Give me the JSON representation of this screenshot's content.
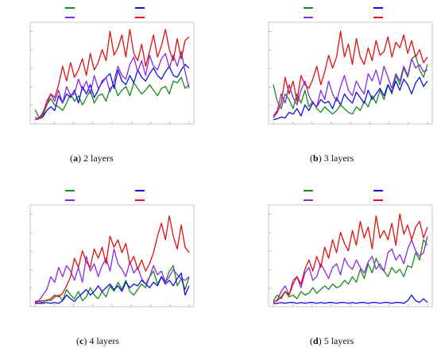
{
  "colors": {
    "green": "#1a8a1a",
    "blue": "#1010e0",
    "purple": "#8a2be2",
    "red": "#e01010",
    "frame": "#c8c8c8",
    "tick": "#999999"
  },
  "chart_data": [
    {
      "type": "line",
      "caption_letter": "a",
      "caption_text": " 2 layers",
      "legend": [
        "green",
        "blue",
        "purple",
        "red"
      ],
      "ylim": [
        0,
        1
      ],
      "series": [
        {
          "color": "green",
          "values": [
            0.13,
            0.05,
            0.06,
            0.18,
            0.25,
            0.18,
            0.16,
            0.12,
            0.2,
            0.3,
            0.22,
            0.28,
            0.18,
            0.26,
            0.34,
            0.2,
            0.28,
            0.3,
            0.22,
            0.36,
            0.4,
            0.28,
            0.34,
            0.38,
            0.28,
            0.42,
            0.36,
            0.3,
            0.34,
            0.4,
            0.34,
            0.28,
            0.36,
            0.38,
            0.3,
            0.44,
            0.42,
            0.48,
            0.36,
            0.4
          ]
        },
        {
          "color": "blue",
          "values": [
            0.02,
            0.03,
            0.05,
            0.12,
            0.16,
            0.12,
            0.28,
            0.2,
            0.3,
            0.26,
            0.34,
            0.2,
            0.38,
            0.3,
            0.4,
            0.26,
            0.34,
            0.44,
            0.48,
            0.52,
            0.36,
            0.56,
            0.44,
            0.4,
            0.5,
            0.42,
            0.56,
            0.48,
            0.44,
            0.52,
            0.58,
            0.5,
            0.46,
            0.54,
            0.6,
            0.5,
            0.48,
            0.56,
            0.62,
            0.58
          ]
        },
        {
          "color": "purple",
          "values": [
            0.05,
            0.03,
            0.1,
            0.18,
            0.3,
            0.22,
            0.34,
            0.2,
            0.38,
            0.28,
            0.3,
            0.46,
            0.34,
            0.44,
            0.3,
            0.5,
            0.36,
            0.42,
            0.48,
            0.32,
            0.44,
            0.6,
            0.5,
            0.46,
            0.62,
            0.7,
            0.54,
            0.66,
            0.5,
            0.72,
            0.6,
            0.56,
            0.68,
            0.74,
            0.58,
            0.72,
            0.6,
            0.76,
            0.54,
            0.36
          ]
        },
        {
          "color": "red",
          "values": [
            0.02,
            0.04,
            0.08,
            0.22,
            0.3,
            0.26,
            0.4,
            0.6,
            0.44,
            0.64,
            0.48,
            0.56,
            0.68,
            0.5,
            0.74,
            0.56,
            0.64,
            0.78,
            0.66,
            0.98,
            0.72,
            0.8,
            0.94,
            0.7,
            1.0,
            0.74,
            0.66,
            0.84,
            0.6,
            0.76,
            0.94,
            0.7,
            0.82,
            1.0,
            0.78,
            0.66,
            0.9,
            0.68,
            0.88,
            0.92
          ]
        }
      ]
    },
    {
      "type": "line",
      "caption_letter": "b",
      "caption_text": " 3 layers",
      "legend": [
        "green",
        "blue",
        "purple",
        "red"
      ],
      "ylim": [
        0,
        1
      ],
      "series": [
        {
          "color": "green",
          "values": [
            0.4,
            0.22,
            0.14,
            0.3,
            0.24,
            0.14,
            0.3,
            0.2,
            0.34,
            0.16,
            0.22,
            0.14,
            0.1,
            0.16,
            0.12,
            0.08,
            0.12,
            0.18,
            0.14,
            0.1,
            0.08,
            0.16,
            0.12,
            0.22,
            0.16,
            0.28,
            0.2,
            0.34,
            0.24,
            0.4,
            0.3,
            0.5,
            0.4,
            0.58,
            0.48,
            0.68,
            0.72,
            0.56,
            0.48,
            0.62
          ]
        },
        {
          "color": "blue",
          "values": [
            0.02,
            0.03,
            0.05,
            0.04,
            0.1,
            0.08,
            0.14,
            0.06,
            0.18,
            0.12,
            0.2,
            0.16,
            0.24,
            0.2,
            0.22,
            0.14,
            0.26,
            0.18,
            0.3,
            0.24,
            0.2,
            0.32,
            0.26,
            0.2,
            0.34,
            0.24,
            0.3,
            0.36,
            0.28,
            0.4,
            0.32,
            0.44,
            0.34,
            0.46,
            0.4,
            0.3,
            0.42,
            0.48,
            0.38,
            0.44
          ]
        },
        {
          "color": "purple",
          "values": [
            0.06,
            0.12,
            0.3,
            0.2,
            0.4,
            0.26,
            0.18,
            0.34,
            0.44,
            0.28,
            0.2,
            0.16,
            0.34,
            0.24,
            0.44,
            0.3,
            0.22,
            0.38,
            0.5,
            0.34,
            0.28,
            0.44,
            0.36,
            0.3,
            0.52,
            0.44,
            0.56,
            0.4,
            0.6,
            0.48,
            0.36,
            0.52,
            0.44,
            0.6,
            0.5,
            0.68,
            0.58,
            0.62,
            0.54,
            0.56
          ]
        },
        {
          "color": "red",
          "values": [
            0.04,
            0.1,
            0.2,
            0.48,
            0.3,
            0.44,
            0.22,
            0.5,
            0.4,
            0.36,
            0.46,
            0.6,
            0.4,
            0.54,
            0.72,
            0.58,
            0.7,
            0.98,
            0.7,
            0.84,
            0.62,
            0.9,
            0.7,
            0.62,
            0.8,
            0.66,
            0.88,
            0.72,
            0.76,
            0.92,
            0.7,
            0.86,
            0.8,
            0.94,
            0.74,
            0.88,
            0.7,
            0.78,
            0.64,
            0.7
          ]
        }
      ]
    },
    {
      "type": "line",
      "caption_letter": "c",
      "caption_text": " 4 layers",
      "legend": [
        "green",
        "blue",
        "purple",
        "red"
      ],
      "ylim": [
        0,
        1
      ],
      "series": [
        {
          "color": "green",
          "values": [
            0.02,
            0.03,
            0.02,
            0.05,
            0.04,
            0.08,
            0.1,
            0.04,
            0.16,
            0.1,
            0.06,
            0.14,
            0.04,
            0.08,
            0.18,
            0.1,
            0.06,
            0.14,
            0.08,
            0.2,
            0.14,
            0.24,
            0.16,
            0.26,
            0.14,
            0.1,
            0.16,
            0.22,
            0.18,
            0.3,
            0.36,
            0.22,
            0.3,
            0.24,
            0.36,
            0.42,
            0.2,
            0.28,
            0.16,
            0.3
          ]
        },
        {
          "color": "blue",
          "values": [
            0.01,
            0.01,
            0.01,
            0.02,
            0.01,
            0.02,
            0.01,
            0.04,
            0.1,
            0.06,
            0.03,
            0.08,
            0.12,
            0.16,
            0.1,
            0.14,
            0.2,
            0.14,
            0.18,
            0.22,
            0.16,
            0.2,
            0.14,
            0.24,
            0.18,
            0.22,
            0.2,
            0.26,
            0.22,
            0.18,
            0.24,
            0.2,
            0.3,
            0.22,
            0.26,
            0.2,
            0.28,
            0.34,
            0.1,
            0.2
          ]
        },
        {
          "color": "purple",
          "values": [
            0.03,
            0.04,
            0.1,
            0.16,
            0.3,
            0.24,
            0.4,
            0.3,
            0.42,
            0.36,
            0.26,
            0.4,
            0.24,
            0.52,
            0.36,
            0.44,
            0.3,
            0.42,
            0.5,
            0.36,
            0.6,
            0.44,
            0.38,
            0.3,
            0.46,
            0.34,
            0.4,
            0.28,
            0.22,
            0.3,
            0.42,
            0.32,
            0.36,
            0.24,
            0.3,
            0.38,
            0.32,
            0.28,
            0.26,
            0.3
          ]
        },
        {
          "color": "red",
          "values": [
            0.02,
            0.03,
            0.04,
            0.04,
            0.06,
            0.1,
            0.08,
            0.12,
            0.2,
            0.3,
            0.5,
            0.4,
            0.58,
            0.46,
            0.4,
            0.6,
            0.5,
            0.62,
            0.44,
            0.74,
            0.62,
            0.7,
            0.56,
            0.66,
            0.44,
            0.52,
            0.38,
            0.48,
            0.36,
            0.44,
            0.56,
            0.74,
            0.88,
            0.7,
            0.96,
            0.74,
            0.6,
            0.86,
            0.62,
            0.56
          ]
        }
      ]
    },
    {
      "type": "line",
      "caption_letter": "d",
      "caption_text": " 5 layers",
      "legend": [
        "green",
        "blue",
        "purple",
        "red"
      ],
      "ylim": [
        0,
        1
      ],
      "series": [
        {
          "color": "green",
          "values": [
            0.04,
            0.1,
            0.06,
            0.14,
            0.08,
            0.1,
            0.06,
            0.14,
            0.1,
            0.12,
            0.18,
            0.12,
            0.16,
            0.2,
            0.16,
            0.22,
            0.18,
            0.2,
            0.26,
            0.22,
            0.3,
            0.24,
            0.38,
            0.28,
            0.44,
            0.34,
            0.5,
            0.4,
            0.36,
            0.3,
            0.4,
            0.34,
            0.38,
            0.3,
            0.42,
            0.4,
            0.56,
            0.48,
            0.7,
            0.64
          ]
        },
        {
          "color": "blue",
          "values": [
            0.01,
            0.01,
            0.02,
            0.01,
            0.02,
            0.02,
            0.01,
            0.02,
            0.01,
            0.02,
            0.02,
            0.01,
            0.02,
            0.01,
            0.02,
            0.02,
            0.01,
            0.02,
            0.02,
            0.01,
            0.02,
            0.01,
            0.02,
            0.02,
            0.01,
            0.02,
            0.02,
            0.01,
            0.02,
            0.02,
            0.01,
            0.02,
            0.02,
            0.01,
            0.04,
            0.1,
            0.04,
            0.02,
            0.06,
            0.02
          ]
        },
        {
          "color": "purple",
          "values": [
            0.02,
            0.05,
            0.14,
            0.2,
            0.1,
            0.26,
            0.3,
            0.18,
            0.34,
            0.4,
            0.26,
            0.3,
            0.44,
            0.36,
            0.28,
            0.4,
            0.44,
            0.32,
            0.5,
            0.42,
            0.38,
            0.48,
            0.4,
            0.34,
            0.46,
            0.52,
            0.38,
            0.44,
            0.36,
            0.56,
            0.6,
            0.48,
            0.54,
            0.44,
            0.6,
            0.7,
            0.58,
            0.52,
            0.56,
            0.74
          ]
        },
        {
          "color": "red",
          "values": [
            0.03,
            0.04,
            0.08,
            0.14,
            0.1,
            0.22,
            0.3,
            0.22,
            0.38,
            0.48,
            0.36,
            0.52,
            0.4,
            0.62,
            0.5,
            0.7,
            0.56,
            0.78,
            0.66,
            0.58,
            0.8,
            0.64,
            0.9,
            0.72,
            0.84,
            0.6,
            0.96,
            0.72,
            0.8,
            0.7,
            0.88,
            0.64,
            0.98,
            0.76,
            0.86,
            0.7,
            0.84,
            0.9,
            0.72,
            0.84
          ]
        }
      ]
    }
  ]
}
